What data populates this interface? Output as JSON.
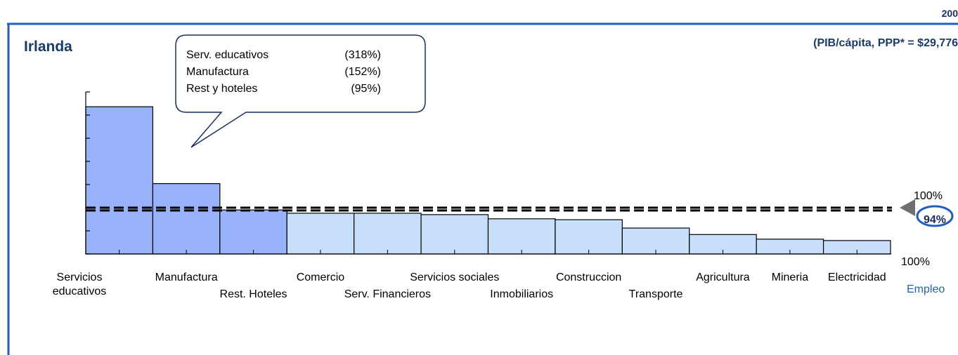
{
  "chart_data": {
    "type": "bar",
    "year": "200",
    "title": "Irlanda",
    "subtitle": "(PIB/cápita, PPP* = $29,776",
    "categories": [
      "Servicios educativos",
      "Manufactura",
      "Rest. Hoteles",
      "Comercio",
      "Serv. Financieros",
      "Servicios sociales",
      "Inmobiliarios",
      "Construccion",
      "Transporte",
      "Agricultura",
      "Mineria",
      "Electricidad"
    ],
    "values": [
      318,
      152,
      95,
      88,
      88,
      85,
      76,
      74,
      56,
      42,
      32,
      29
    ],
    "colors": [
      "#99b3fb",
      "#99b3fb",
      "#99b3fb",
      "#c8dffb",
      "#c8dffb",
      "#c8dffb",
      "#c8dffb",
      "#c8dffb",
      "#c8dffb",
      "#c8dffb",
      "#c8dffb",
      "#c8dffb"
    ],
    "ylim": [
      0,
      350
    ],
    "yticks": [
      0,
      50,
      100,
      150,
      200,
      250,
      300,
      350
    ],
    "reference_lines": [
      {
        "value": 100,
        "label": "100%"
      },
      {
        "value": 94,
        "label": "94%"
      }
    ],
    "x_end_label": "100%",
    "xlabel": "Empleo",
    "callout": [
      {
        "name": "Serv. educativos",
        "label": "(318%)"
      },
      {
        "name": "Manufactura",
        "label": "(152%)"
      },
      {
        "name": "Rest y hoteles",
        "label": "(95%)"
      }
    ]
  }
}
